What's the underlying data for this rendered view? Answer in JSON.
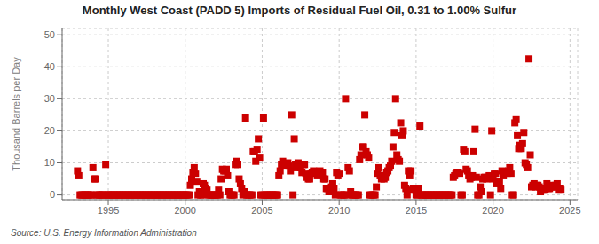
{
  "chart_data": {
    "type": "scatter",
    "title": "Monthly West Coast (PADD 5) Imports of Residual Fuel Oil, 0.31 to 1.00% Sulfur",
    "ylabel": "Thousand Barrels per Day",
    "source": "Source: U.S. Energy Information Administration",
    "color": "#cc0000",
    "marker": "square",
    "grid": true,
    "xlim": [
      1992.0,
      2025.5
    ],
    "ylim": [
      -1.5,
      52
    ],
    "xticks": [
      1995,
      2000,
      2005,
      2010,
      2015,
      2020,
      2025
    ],
    "yticks": [
      0,
      10,
      20,
      30,
      40,
      50
    ],
    "x": [
      1993.0,
      1993.083,
      1993.167,
      1993.25,
      1993.333,
      1993.417,
      1993.5,
      1993.583,
      1993.667,
      1993.75,
      1993.833,
      1993.917,
      1994.0,
      1994.083,
      1994.167,
      1994.25,
      1994.333,
      1994.417,
      1994.5,
      1994.583,
      1994.667,
      1994.75,
      1994.833,
      1994.917,
      1995.0,
      1995.083,
      1995.167,
      1995.25,
      1995.333,
      1995.417,
      1995.5,
      1995.583,
      1995.667,
      1995.75,
      1995.833,
      1995.917,
      1996.0,
      1996.083,
      1996.167,
      1996.25,
      1996.333,
      1996.417,
      1996.5,
      1996.583,
      1996.667,
      1996.75,
      1996.833,
      1996.917,
      1997.0,
      1997.083,
      1997.167,
      1997.25,
      1997.333,
      1997.417,
      1997.5,
      1997.583,
      1997.667,
      1997.75,
      1997.833,
      1997.917,
      1998.0,
      1998.083,
      1998.167,
      1998.25,
      1998.333,
      1998.417,
      1998.5,
      1998.583,
      1998.667,
      1998.75,
      1998.833,
      1998.917,
      1999.0,
      1999.083,
      1999.167,
      1999.25,
      1999.333,
      1999.417,
      1999.5,
      1999.583,
      1999.667,
      1999.75,
      1999.833,
      1999.917,
      2000.0,
      2000.083,
      2000.167,
      2000.25,
      2000.333,
      2000.417,
      2000.5,
      2000.583,
      2000.667,
      2000.75,
      2000.833,
      2000.917,
      2001.0,
      2001.083,
      2001.167,
      2001.25,
      2001.333,
      2001.417,
      2001.5,
      2001.583,
      2001.667,
      2001.75,
      2001.833,
      2001.917,
      2002.0,
      2002.083,
      2002.167,
      2002.25,
      2002.333,
      2002.417,
      2002.5,
      2002.583,
      2002.667,
      2002.75,
      2002.833,
      2002.917,
      2003.0,
      2003.083,
      2003.167,
      2003.25,
      2003.333,
      2003.417,
      2003.5,
      2003.583,
      2003.667,
      2003.75,
      2003.833,
      2003.917,
      2004.0,
      2004.083,
      2004.167,
      2004.25,
      2004.333,
      2004.417,
      2004.5,
      2004.583,
      2004.667,
      2004.75,
      2004.833,
      2004.917,
      2005.0,
      2005.083,
      2005.167,
      2005.25,
      2005.333,
      2005.417,
      2005.5,
      2005.583,
      2005.667,
      2005.75,
      2005.833,
      2005.917,
      2006.0,
      2006.083,
      2006.167,
      2006.25,
      2006.333,
      2006.417,
      2006.5,
      2006.583,
      2006.667,
      2006.75,
      2006.833,
      2006.917,
      2007.0,
      2007.083,
      2007.167,
      2007.25,
      2007.333,
      2007.417,
      2007.5,
      2007.583,
      2007.667,
      2007.75,
      2007.833,
      2007.917,
      2008.0,
      2008.083,
      2008.167,
      2008.25,
      2008.333,
      2008.417,
      2008.5,
      2008.583,
      2008.667,
      2008.75,
      2008.833,
      2008.917,
      2009.0,
      2009.083,
      2009.167,
      2009.25,
      2009.333,
      2009.417,
      2009.5,
      2009.583,
      2009.667,
      2009.75,
      2009.833,
      2009.917,
      2010.0,
      2010.083,
      2010.167,
      2010.25,
      2010.333,
      2010.417,
      2010.5,
      2010.583,
      2010.667,
      2010.75,
      2010.833,
      2010.917,
      2011.0,
      2011.083,
      2011.167,
      2011.25,
      2011.333,
      2011.417,
      2011.5,
      2011.583,
      2011.667,
      2011.75,
      2011.833,
      2011.917,
      2012.0,
      2012.083,
      2012.167,
      2012.25,
      2012.333,
      2012.417,
      2012.5,
      2012.583,
      2012.667,
      2012.75,
      2012.833,
      2012.917,
      2013.0,
      2013.083,
      2013.167,
      2013.25,
      2013.333,
      2013.417,
      2013.5,
      2013.583,
      2013.667,
      2013.75,
      2013.833,
      2013.917,
      2014.0,
      2014.083,
      2014.167,
      2014.25,
      2014.333,
      2014.417,
      2014.5,
      2014.583,
      2014.667,
      2014.75,
      2014.833,
      2014.917,
      2015.0,
      2015.083,
      2015.167,
      2015.25,
      2015.333,
      2015.417,
      2015.5,
      2015.583,
      2015.667,
      2015.75,
      2015.833,
      2015.917,
      2016.0,
      2016.083,
      2016.167,
      2016.25,
      2016.333,
      2016.417,
      2016.5,
      2016.583,
      2016.667,
      2016.75,
      2016.833,
      2016.917,
      2017.0,
      2017.083,
      2017.167,
      2017.25,
      2017.333,
      2017.417,
      2017.5,
      2017.583,
      2017.667,
      2017.75,
      2017.833,
      2017.917,
      2018.0,
      2018.083,
      2018.167,
      2018.25,
      2018.333,
      2018.417,
      2018.5,
      2018.583,
      2018.667,
      2018.75,
      2018.833,
      2018.917,
      2019.0,
      2019.083,
      2019.167,
      2019.25,
      2019.333,
      2019.417,
      2019.5,
      2019.583,
      2019.667,
      2019.75,
      2019.833,
      2019.917,
      2020.0,
      2020.083,
      2020.167,
      2020.25,
      2020.333,
      2020.417,
      2020.5,
      2020.583,
      2020.667,
      2020.75,
      2020.833,
      2020.917,
      2021.0,
      2021.083,
      2021.167,
      2021.25,
      2021.333,
      2021.417,
      2021.5,
      2021.583,
      2021.667,
      2021.75,
      2021.833,
      2021.917,
      2022.0,
      2022.083,
      2022.167,
      2022.25,
      2022.333,
      2022.417,
      2022.5,
      2022.583,
      2022.667,
      2022.75,
      2022.833,
      2022.917,
      2023.0,
      2023.083,
      2023.167,
      2023.25,
      2023.333,
      2023.417,
      2023.5,
      2023.583,
      2023.667,
      2023.75,
      2023.833,
      2023.917,
      2024.0,
      2024.083,
      2024.167,
      2024.25,
      2024.333,
      2024.417
    ],
    "values": [
      7.5,
      6.0,
      0.0,
      0.0,
      0.0,
      0.0,
      0.0,
      0.0,
      0.0,
      0.0,
      0.0,
      0.0,
      8.5,
      5.0,
      5.0,
      0.0,
      0.0,
      0.0,
      0.0,
      0.0,
      0.0,
      0.0,
      9.5,
      0.0,
      0.0,
      0.0,
      0.0,
      0.0,
      0.0,
      0.0,
      0.0,
      0.0,
      0.0,
      0.0,
      0.0,
      0.0,
      0.0,
      0.0,
      0.0,
      0.0,
      0.0,
      0.0,
      0.0,
      0.0,
      0.0,
      0.0,
      0.0,
      0.0,
      0.0,
      0.0,
      0.0,
      0.0,
      0.0,
      0.0,
      0.0,
      0.0,
      0.0,
      0.0,
      0.0,
      0.0,
      0.0,
      0.0,
      0.0,
      0.0,
      0.0,
      0.0,
      0.0,
      0.0,
      0.0,
      0.0,
      0.0,
      0.0,
      0.0,
      0.0,
      0.0,
      0.0,
      0.0,
      0.0,
      0.0,
      0.0,
      0.0,
      0.0,
      0.0,
      0.0,
      0.0,
      0.0,
      0.0,
      0.0,
      3.0,
      5.0,
      7.0,
      8.5,
      6.5,
      4.0,
      0.0,
      1.0,
      0.0,
      0.0,
      3.5,
      3.0,
      2.0,
      1.5,
      0.0,
      0.0,
      0.0,
      0.0,
      0.0,
      0.0,
      0.0,
      0.0,
      1.5,
      0.0,
      5.0,
      8.0,
      7.5,
      7.5,
      8.0,
      6.0,
      1.0,
      0.0,
      0.0,
      0.0,
      0.0,
      9.5,
      10.5,
      9.5,
      5.0,
      3.5,
      2.0,
      0.0,
      1.0,
      24.0,
      0.0,
      0.0,
      0.0,
      0.0,
      0.0,
      13.5,
      13.5,
      10.5,
      14.0,
      17.5,
      11.5,
      0.0,
      0.0,
      24.0,
      0.0,
      0.0,
      0.0,
      0.0,
      0.0,
      0.0,
      0.0,
      0.0,
      0.0,
      0.0,
      0.0,
      6.0,
      7.5,
      9.5,
      10.5,
      9.5,
      9.5,
      9.0,
      10.0,
      9.0,
      7.5,
      25.0,
      0.0,
      17.5,
      9.5,
      8.5,
      10.0,
      9.0,
      8.5,
      7.0,
      9.5,
      9.5,
      6.5,
      5.5,
      5.0,
      5.0,
      6.5,
      7.0,
      7.5,
      7.0,
      6.5,
      6.0,
      6.5,
      7.5,
      7.0,
      7.0,
      5.0,
      5.0,
      2.0,
      2.0,
      1.0,
      1.5,
      2.5,
      3.5,
      2.0,
      0.0,
      7.0,
      6.0,
      6.5,
      0.0,
      0.0,
      0.0,
      0.0,
      30.0,
      0.0,
      8.5,
      7.5,
      1.0,
      0.0,
      0.0,
      0.0,
      0.0,
      0.0,
      0.0,
      11.0,
      12.5,
      15.0,
      15.0,
      25.0,
      13.5,
      12.5,
      11.5,
      0.0,
      0.0,
      0.0,
      0.0,
      0.0,
      2.5,
      6.5,
      8.5,
      6.0,
      5.0,
      6.0,
      5.0,
      5.5,
      7.0,
      7.5,
      8.5,
      9.0,
      10.5,
      15.0,
      19.5,
      30.0,
      12.5,
      11.0,
      10.5,
      22.5,
      18.5,
      20.0,
      3.0,
      2.0,
      0.0,
      7.5,
      6.0,
      7.5,
      1.5,
      2.0,
      1.5,
      0.0,
      0.0,
      2.0,
      21.5,
      0.0,
      0.0,
      0.0,
      0.0,
      0.0,
      0.0,
      0.0,
      0.0,
      0.0,
      0.0,
      0.0,
      0.0,
      0.0,
      0.0,
      0.0,
      0.0,
      0.0,
      0.0,
      0.0,
      0.0,
      0.0,
      0.0,
      0.0,
      0.0,
      0.0,
      5.5,
      6.0,
      6.5,
      7.0,
      7.0,
      6.5,
      0.0,
      0.0,
      14.0,
      13.5,
      8.0,
      7.5,
      6.0,
      5.0,
      5.5,
      6.0,
      13.5,
      20.5,
      5.5,
      0.0,
      0.0,
      2.5,
      1.0,
      5.0,
      5.5,
      5.5,
      5.0,
      5.5,
      6.0,
      0.0,
      20.0,
      5.0,
      6.5,
      6.5,
      3.5,
      4.0,
      4.0,
      2.0,
      7.5,
      6.0,
      6.5,
      7.0,
      6.5,
      7.5,
      8.5,
      6.5,
      0.0,
      0.0,
      22.5,
      23.5,
      18.5,
      14.5,
      15.5,
      14.5,
      16.0,
      19.5,
      10.0,
      9.5,
      8.5,
      42.5,
      12.5,
      2.5,
      3.0,
      3.5,
      2.5,
      3.0,
      3.0,
      2.5,
      1.0,
      1.5,
      1.5,
      1.5,
      2.0,
      3.5,
      2.0,
      2.0,
      2.5,
      3.0,
      2.5,
      2.5,
      3.0,
      3.5,
      1.5,
      2.0,
      1.5
    ]
  }
}
